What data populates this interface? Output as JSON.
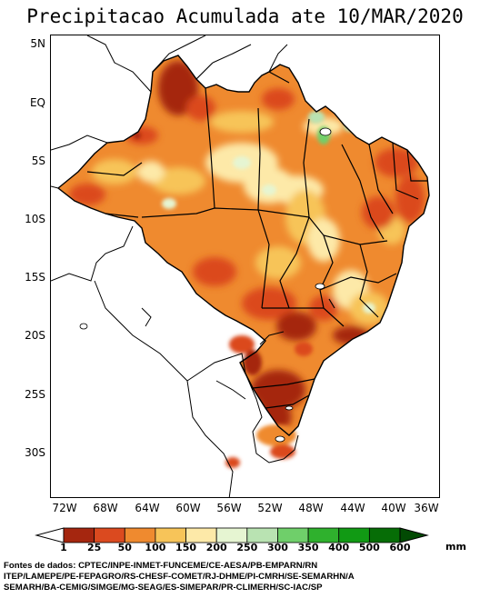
{
  "title": "Precipitacao Acumulada ate 10/MAR/2020",
  "latitude_labels": [
    "5N",
    "EQ",
    "5S",
    "10S",
    "15S",
    "20S",
    "25S",
    "30S"
  ],
  "longitude_labels": [
    "72W",
    "68W",
    "64W",
    "60W",
    "56W",
    "52W",
    "48W",
    "44W",
    "40W",
    "36W"
  ],
  "legend": {
    "thresholds": [
      "1",
      "25",
      "50",
      "100",
      "150",
      "200",
      "250",
      "300",
      "350",
      "400",
      "500",
      "600"
    ],
    "unit": "mm",
    "colors": [
      "#ffffff",
      "#a5260f",
      "#db4a1f",
      "#ef8a2f",
      "#f7c459",
      "#fde9a8",
      "#e6f5d2",
      "#b9e3b2",
      "#6fcf6a",
      "#2fb12d",
      "#119a14",
      "#066d06",
      "#024a03"
    ]
  },
  "sources": [
    "Fontes de dados: CPTEC/INPE-INMET-FUNCEME/CE-AESA/PB-EMPARN/RN",
    "ITEP/LAMEPE/PE-FEPAGRO/RS-CHESF-COMET/RJ-DHME/PI-CMRH/SE-SEMARHN/A",
    "SEMARH/BA-CEMIG/SIMGE/MG-SEAG/ES-SIMEPAR/PR-CLIMERH/SC-IAC/SP"
  ]
}
